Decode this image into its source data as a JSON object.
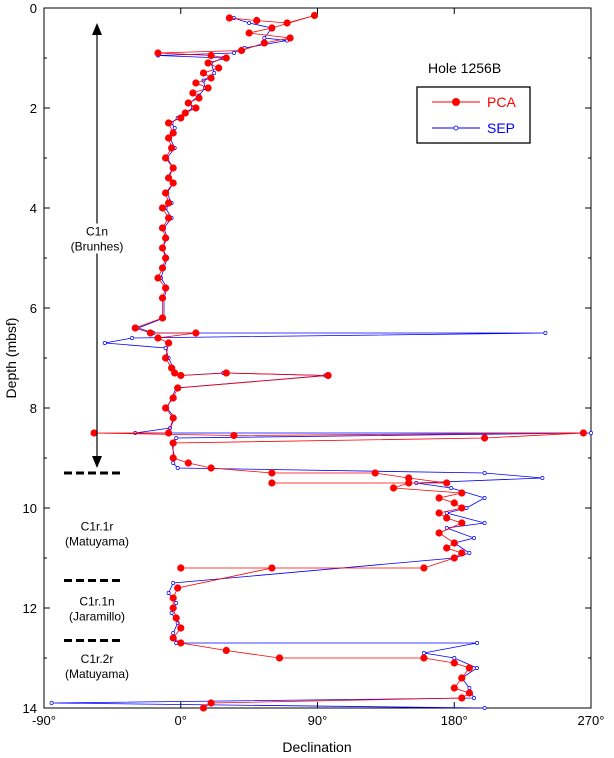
{
  "chart_data": {
    "type": "scatter",
    "title": "Hole 1256B",
    "xlabel": "Declination",
    "ylabel": "Depth (mbsf)",
    "xlim": [
      -90,
      270
    ],
    "ylim": [
      0,
      14
    ],
    "y_inverted": true,
    "xticks": [
      -90,
      0,
      90,
      180,
      270
    ],
    "xtick_labels": [
      "-90°",
      "0°",
      "90°",
      "180°",
      "270°"
    ],
    "yticks": [
      0,
      2,
      4,
      6,
      8,
      10,
      12,
      14
    ],
    "ytick_labels": [
      "0",
      "2",
      "4",
      "6",
      "8",
      "10",
      "12",
      "14"
    ],
    "legend_position": "top-right",
    "grid": false,
    "series": [
      {
        "name": "PCA",
        "color": "#ff0000",
        "marker": "filled-circle",
        "points": [
          [
            32,
            0.2
          ],
          [
            50,
            0.25
          ],
          [
            70,
            0.3
          ],
          [
            88,
            0.15
          ],
          [
            60,
            0.4
          ],
          [
            45,
            0.5
          ],
          [
            72,
            0.6
          ],
          [
            55,
            0.7
          ],
          [
            40,
            0.85
          ],
          [
            -15,
            0.9
          ],
          [
            20,
            0.95
          ],
          [
            30,
            1.0
          ],
          [
            18,
            1.1
          ],
          [
            25,
            1.2
          ],
          [
            15,
            1.3
          ],
          [
            20,
            1.4
          ],
          [
            10,
            1.5
          ],
          [
            18,
            1.6
          ],
          [
            8,
            1.7
          ],
          [
            12,
            1.8
          ],
          [
            5,
            1.9
          ],
          [
            10,
            2.0
          ],
          [
            3,
            2.1
          ],
          [
            0,
            2.2
          ],
          [
            -8,
            2.3
          ],
          [
            -5,
            2.5
          ],
          [
            -8,
            2.6
          ],
          [
            -6,
            2.8
          ],
          [
            -10,
            3.0
          ],
          [
            -5,
            3.2
          ],
          [
            -8,
            3.4
          ],
          [
            -5,
            3.5
          ],
          [
            -10,
            3.7
          ],
          [
            -8,
            3.9
          ],
          [
            -12,
            4.0
          ],
          [
            -8,
            4.2
          ],
          [
            -12,
            4.4
          ],
          [
            -10,
            4.6
          ],
          [
            -12,
            4.8
          ],
          [
            -10,
            5.0
          ],
          [
            -12,
            5.2
          ],
          [
            -15,
            5.4
          ],
          [
            -10,
            5.6
          ],
          [
            -12,
            5.8
          ],
          [
            -12,
            6.2
          ],
          [
            -30,
            6.4
          ],
          [
            -20,
            6.5
          ],
          [
            10,
            6.5
          ],
          [
            -15,
            6.6
          ],
          [
            -8,
            6.7
          ],
          [
            -10,
            7.0
          ],
          [
            -6,
            7.2
          ],
          [
            -4,
            7.3
          ],
          [
            0,
            7.35
          ],
          [
            30,
            7.3
          ],
          [
            97,
            7.35
          ],
          [
            -2,
            7.6
          ],
          [
            -5,
            7.8
          ],
          [
            -10,
            8.0
          ],
          [
            -5,
            8.2
          ],
          [
            -8,
            8.5
          ],
          [
            -57,
            8.5
          ],
          [
            35,
            8.55
          ],
          [
            265,
            8.5
          ],
          [
            200,
            8.6
          ],
          [
            -5,
            8.7
          ],
          [
            -5,
            9.0
          ],
          [
            5,
            9.1
          ],
          [
            20,
            9.2
          ],
          [
            60,
            9.3
          ],
          [
            128,
            9.3
          ],
          [
            150,
            9.4
          ],
          [
            175,
            9.5
          ],
          [
            60,
            9.5
          ],
          [
            150,
            9.5
          ],
          [
            140,
            9.6
          ],
          [
            185,
            9.7
          ],
          [
            170,
            9.8
          ],
          [
            180,
            9.9
          ],
          [
            185,
            10.0
          ],
          [
            170,
            10.1
          ],
          [
            175,
            10.2
          ],
          [
            185,
            10.3
          ],
          [
            170,
            10.5
          ],
          [
            180,
            10.7
          ],
          [
            175,
            10.8
          ],
          [
            185,
            10.9
          ],
          [
            180,
            11.0
          ],
          [
            160,
            11.2
          ],
          [
            0,
            11.2
          ],
          [
            60,
            11.2
          ],
          [
            -2,
            11.6
          ],
          [
            -5,
            11.8
          ],
          [
            -5,
            12.0
          ],
          [
            -3,
            12.2
          ],
          [
            0,
            12.4
          ],
          [
            -5,
            12.6
          ],
          [
            0,
            12.7
          ],
          [
            30,
            12.85
          ],
          [
            65,
            13.0
          ],
          [
            160,
            13.0
          ],
          [
            180,
            13.1
          ],
          [
            190,
            13.2
          ],
          [
            185,
            13.4
          ],
          [
            180,
            13.6
          ],
          [
            190,
            13.7
          ],
          [
            185,
            13.8
          ],
          [
            20,
            13.9
          ],
          [
            15,
            14.0
          ]
        ]
      },
      {
        "name": "SEP",
        "color": "#0000ff",
        "marker": "small-open-circle",
        "points": [
          [
            35,
            0.2
          ],
          [
            45,
            0.3
          ],
          [
            60,
            0.4
          ],
          [
            55,
            0.6
          ],
          [
            70,
            0.65
          ],
          [
            42,
            0.8
          ],
          [
            35,
            0.9
          ],
          [
            -15,
            0.95
          ],
          [
            28,
            1.0
          ],
          [
            20,
            1.1
          ],
          [
            22,
            1.3
          ],
          [
            15,
            1.45
          ],
          [
            16,
            1.6
          ],
          [
            12,
            1.75
          ],
          [
            6,
            1.9
          ],
          [
            8,
            2.0
          ],
          [
            3,
            2.1
          ],
          [
            -2,
            2.2
          ],
          [
            -6,
            2.3
          ],
          [
            -4,
            2.4
          ],
          [
            -7,
            2.6
          ],
          [
            -4,
            2.8
          ],
          [
            -9,
            3.0
          ],
          [
            -5,
            3.2
          ],
          [
            -9,
            3.4
          ],
          [
            -5,
            3.5
          ],
          [
            -9,
            3.7
          ],
          [
            -6,
            3.9
          ],
          [
            -10,
            4.0
          ],
          [
            -6,
            4.2
          ],
          [
            -11,
            4.4
          ],
          [
            -9,
            4.6
          ],
          [
            -12,
            4.8
          ],
          [
            -9,
            5.0
          ],
          [
            -11,
            5.2
          ],
          [
            -13,
            5.4
          ],
          [
            -9,
            5.6
          ],
          [
            -11,
            5.8
          ],
          [
            -11,
            6.2
          ],
          [
            -28,
            6.4
          ],
          [
            -18,
            6.5
          ],
          [
            240,
            6.5
          ],
          [
            -32,
            6.6
          ],
          [
            -50,
            6.7
          ],
          [
            -10,
            6.8
          ],
          [
            -8,
            7.0
          ],
          [
            -5,
            7.2
          ],
          [
            -3,
            7.3
          ],
          [
            0,
            7.35
          ],
          [
            28,
            7.3
          ],
          [
            95,
            7.35
          ],
          [
            -3,
            7.6
          ],
          [
            -6,
            7.8
          ],
          [
            -9,
            8.0
          ],
          [
            -4,
            8.2
          ],
          [
            -7,
            8.4
          ],
          [
            -30,
            8.5
          ],
          [
            270,
            8.5
          ],
          [
            -3,
            8.6
          ],
          [
            -6,
            8.7
          ],
          [
            -4,
            9.0
          ],
          [
            -5,
            9.1
          ],
          [
            -2,
            9.2
          ],
          [
            200,
            9.3
          ],
          [
            238,
            9.4
          ],
          [
            155,
            9.5
          ],
          [
            178,
            9.6
          ],
          [
            200,
            9.8
          ],
          [
            188,
            10.0
          ],
          [
            175,
            10.1
          ],
          [
            200,
            10.3
          ],
          [
            175,
            10.4
          ],
          [
            193,
            10.6
          ],
          [
            180,
            10.7
          ],
          [
            190,
            10.9
          ],
          [
            180,
            11.0
          ],
          [
            -5,
            11.5
          ],
          [
            -8,
            11.7
          ],
          [
            -3,
            11.9
          ],
          [
            -6,
            12.1
          ],
          [
            -2,
            12.3
          ],
          [
            -5,
            12.5
          ],
          [
            -3,
            12.7
          ],
          [
            195,
            12.7
          ],
          [
            160,
            12.9
          ],
          [
            180,
            13.0
          ],
          [
            195,
            13.2
          ],
          [
            185,
            13.4
          ],
          [
            190,
            13.6
          ],
          [
            193,
            13.8
          ],
          [
            -85,
            13.9
          ],
          [
            200,
            14.0
          ]
        ]
      }
    ],
    "annotations": {
      "chrons": [
        {
          "lines": [
            "C1n",
            "(Brunhes)"
          ],
          "center_depth": 4.6
        },
        {
          "lines": [
            "C1r.1r",
            "(Matuyama)"
          ],
          "center_depth": 10.5
        },
        {
          "lines": [
            "C1r.1n",
            "(Jaramillo)"
          ],
          "center_depth": 12.0
        },
        {
          "lines": [
            "C1r.2r",
            "(Matuyama)"
          ],
          "center_depth": 13.15
        }
      ],
      "boundaries": [
        9.3,
        11.45,
        12.65
      ],
      "arrow_range": [
        0.3,
        9.2
      ]
    }
  }
}
